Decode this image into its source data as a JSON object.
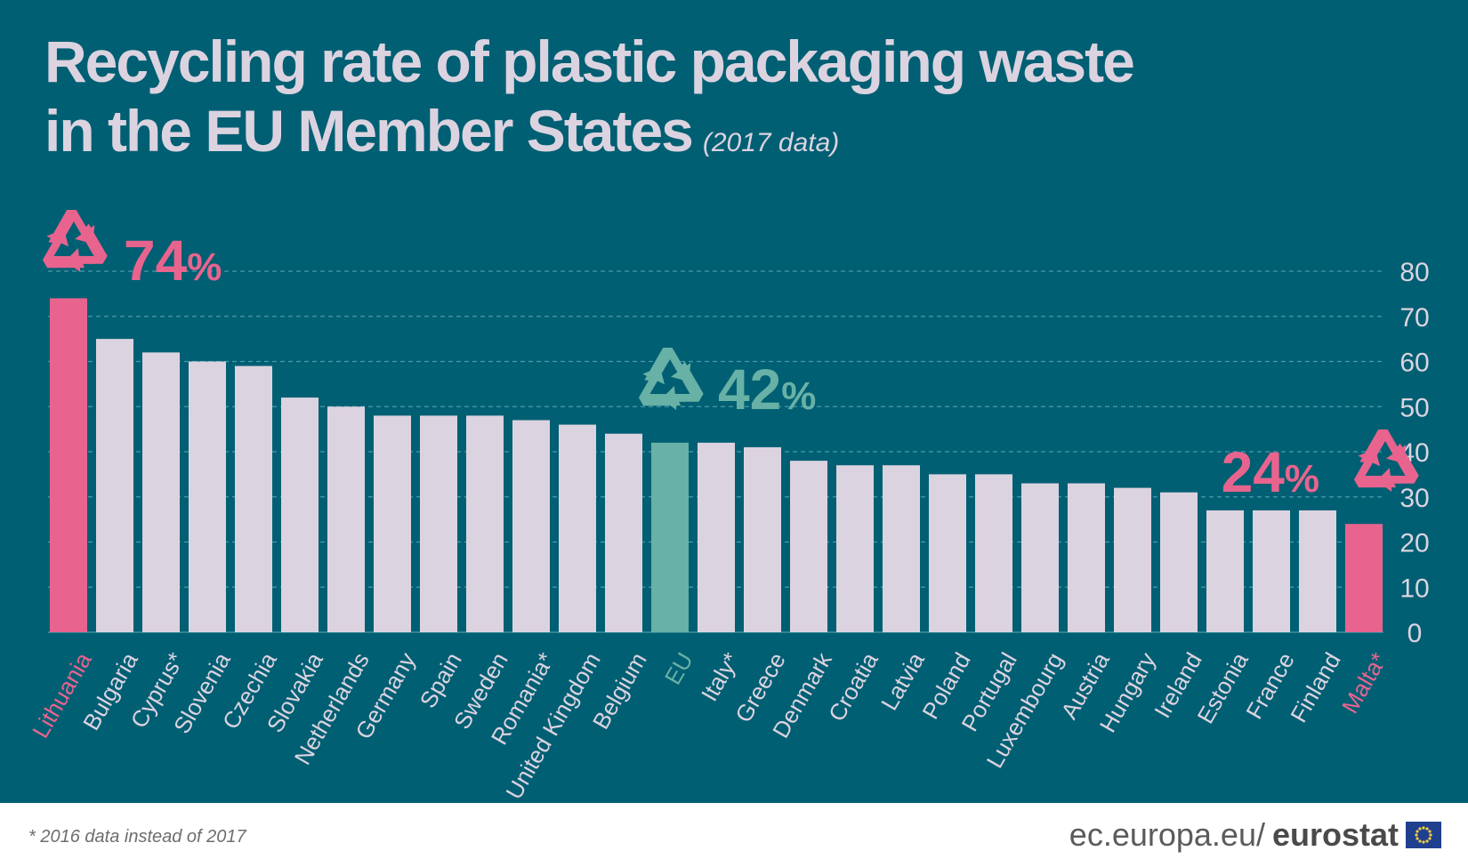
{
  "header": {
    "title_line1": "Recycling rate of plastic packaging waste",
    "title_line2": "in the EU Member States",
    "subtitle": "(2017 data)"
  },
  "colors": {
    "background": "#005f73",
    "bar_default": "#dcd3e0",
    "bar_highlight": "#e8648e",
    "bar_eu": "#68b1a6",
    "text_light": "#dcd3e0",
    "grid": "#4a9aa8"
  },
  "callouts": {
    "max": {
      "value": "74",
      "unit": "%",
      "icon": "recycle-icon",
      "category": "Lithuania"
    },
    "eu": {
      "value": "42",
      "unit": "%",
      "icon": "recycle-icon",
      "category": "EU"
    },
    "min": {
      "value": "24",
      "unit": "%",
      "icon": "recycle-icon",
      "category": "Malta*"
    }
  },
  "chart_data": {
    "type": "bar",
    "categories": [
      "Lithuania",
      "Bulgaria",
      "Cyprus*",
      "Slovenia",
      "Czechia",
      "Slovakia",
      "Netherlands",
      "Germany",
      "Spain",
      "Sweden",
      "Romania*",
      "United Kingdom",
      "Belgium",
      "EU",
      "Italy*",
      "Greece",
      "Denmark",
      "Croatia",
      "Latvia",
      "Poland",
      "Portugal",
      "Luxembourg",
      "Austria",
      "Hungary",
      "Ireland",
      "Estonia",
      "France",
      "Finland",
      "Malta*"
    ],
    "values": [
      74,
      65,
      62,
      60,
      59,
      52,
      50,
      48,
      48,
      48,
      47,
      46,
      44,
      42,
      42,
      41,
      38,
      37,
      37,
      35,
      35,
      33,
      33,
      32,
      31,
      27,
      27,
      27,
      24
    ],
    "highlight": {
      "Lithuania": "max",
      "EU": "eu",
      "Malta*": "min"
    },
    "title": "Recycling rate of plastic packaging waste in the EU Member States",
    "subtitle": "(2017 data)",
    "xlabel": "",
    "ylabel": "",
    "ylim": [
      0,
      80
    ],
    "yticks": [
      0,
      10,
      20,
      30,
      40,
      50,
      60,
      70,
      80
    ],
    "y_axis_side": "right",
    "grid": true
  },
  "footer": {
    "note": "* 2016 data instead of 2017",
    "site": "ec.europa.eu/",
    "brand": "eurostat"
  }
}
